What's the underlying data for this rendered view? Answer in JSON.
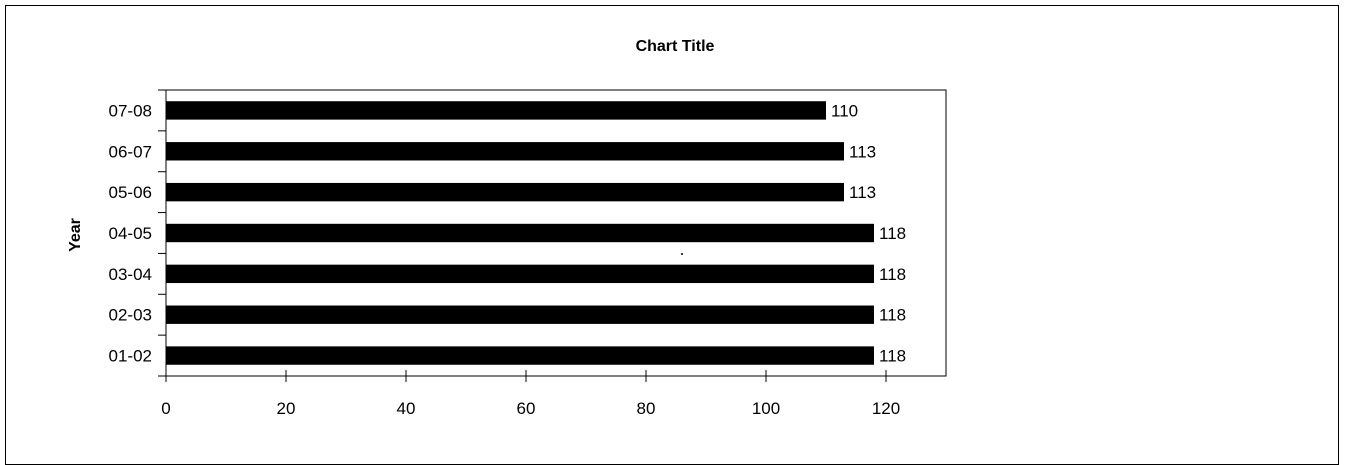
{
  "chart_data": {
    "type": "bar",
    "orientation": "horizontal",
    "title": "Chart Title",
    "xlabel": "",
    "ylabel": "Year",
    "categories": [
      "01-02",
      "02-03",
      "03-04",
      "04-05",
      "05-06",
      "06-07",
      "07-08"
    ],
    "values": [
      118,
      118,
      118,
      118,
      113,
      113,
      110
    ],
    "xlim": [
      0,
      130
    ],
    "xticks": [
      0,
      20,
      40,
      60,
      80,
      100,
      120
    ],
    "data_labels": true,
    "grid": false,
    "legend": "none",
    "bar_color": "#000000"
  }
}
